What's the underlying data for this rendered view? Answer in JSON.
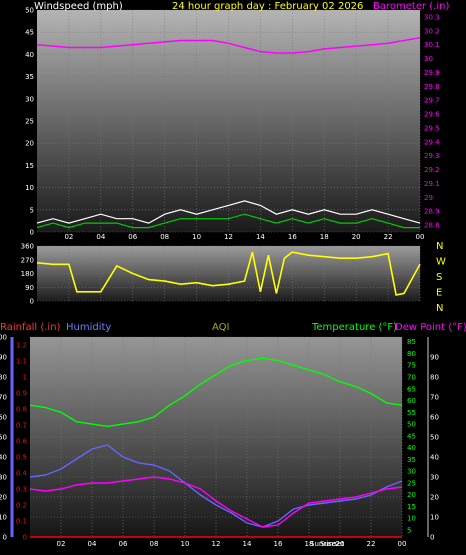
{
  "colors": {
    "wind": "#ffffff",
    "wind_avg": "#00cc00",
    "barometer": "#ff00ff",
    "direction": "#ffff00",
    "rainfall": "#ff0000",
    "humidity": "#6666ff",
    "temperature": "#00ff00",
    "dewpoint": "#ff00ff",
    "title": "#ffff00",
    "axis_text": "#ffffff",
    "background": "#000000"
  },
  "chart_data": [
    {
      "type": "line",
      "title": "24 hour graph day : February 02 2026",
      "left_label": "Windspeed (mph)",
      "right_label": "Barometer (.in)",
      "x_ticks": [
        "02",
        "04",
        "06",
        "08",
        "10",
        "12",
        "14",
        "16",
        "18",
        "20",
        "22",
        "00"
      ],
      "y_left_ticks": [
        "0",
        "5",
        "10",
        "15",
        "20",
        "25",
        "30",
        "35",
        "40",
        "45",
        "50"
      ],
      "y_right_ticks": [
        "28.8",
        "28.9",
        "29",
        "29.1",
        "29.2",
        "29.3",
        "29.4",
        "29.5",
        "29.6",
        "29.7",
        "29.8",
        "29.9",
        "30",
        "30.1",
        "30.2",
        "30.3"
      ],
      "ylim_left": [
        0,
        50
      ],
      "ylim_right": [
        28.75,
        30.35
      ],
      "series": [
        {
          "key": "barometer",
          "x": [
            0,
            1,
            2,
            3,
            4,
            5,
            6,
            7,
            8,
            9,
            10,
            11,
            12,
            13,
            14,
            15,
            16,
            17,
            18,
            19,
            20,
            21,
            22,
            23,
            24
          ],
          "values": [
            30.1,
            30.09,
            30.08,
            30.08,
            30.08,
            30.09,
            30.1,
            30.11,
            30.12,
            30.13,
            30.13,
            30.13,
            30.11,
            30.08,
            30.05,
            30.04,
            30.04,
            30.05,
            30.07,
            30.08,
            30.09,
            30.1,
            30.11,
            30.13,
            30.15
          ]
        },
        {
          "key": "wind",
          "x": [
            0,
            1,
            2,
            3,
            4,
            5,
            6,
            7,
            8,
            9,
            10,
            11,
            12,
            13,
            14,
            15,
            16,
            17,
            18,
            19,
            20,
            21,
            22,
            23,
            24
          ],
          "values": [
            2,
            3,
            2,
            3,
            4,
            3,
            3,
            2,
            4,
            5,
            4,
            5,
            6,
            7,
            6,
            4,
            5,
            4,
            5,
            4,
            4,
            5,
            4,
            3,
            2
          ]
        },
        {
          "key": "wind_avg",
          "x": [
            0,
            1,
            2,
            3,
            4,
            5,
            6,
            7,
            8,
            9,
            10,
            11,
            12,
            13,
            14,
            15,
            16,
            17,
            18,
            19,
            20,
            21,
            22,
            23,
            24
          ],
          "values": [
            1,
            2,
            1,
            2,
            2,
            2,
            1,
            1,
            2,
            3,
            3,
            3,
            3,
            4,
            3,
            2,
            3,
            2,
            3,
            2,
            2,
            3,
            2,
            1,
            1
          ]
        }
      ]
    },
    {
      "type": "line",
      "left_ticks": [
        "0",
        "90",
        "180",
        "270",
        "360"
      ],
      "right_ticks": [
        "N",
        "W",
        "S",
        "E",
        "N"
      ],
      "ylim": [
        0,
        360
      ],
      "series": [
        {
          "key": "direction",
          "x": [
            0,
            1,
            2,
            2.5,
            3,
            4,
            5,
            6,
            7,
            8,
            9,
            10,
            11,
            12,
            13,
            13.5,
            14,
            14.5,
            15,
            15.5,
            16,
            17,
            18,
            19,
            20,
            21,
            22,
            22.5,
            23,
            24
          ],
          "values": [
            250,
            240,
            240,
            60,
            60,
            60,
            230,
            180,
            140,
            130,
            110,
            120,
            100,
            110,
            130,
            320,
            60,
            300,
            50,
            280,
            320,
            300,
            290,
            280,
            280,
            290,
            310,
            40,
            50,
            240
          ]
        }
      ]
    },
    {
      "type": "line",
      "labels": {
        "rainfall": "Rainfall (.in)",
        "humidity": "Humidity",
        "aqi": "AQI",
        "temperature": "Temperature (°F)",
        "dewpoint": "Dew Point (°F)"
      },
      "x_ticks": [
        "02",
        "04",
        "06",
        "08",
        "10",
        "12",
        "14",
        "16",
        "18",
        "20",
        "22",
        "00"
      ],
      "sunrise_label": "Sunrise",
      "sunset_label": "Sunset",
      "y_humidity_ticks": [
        "0",
        "10",
        "20",
        "30",
        "40",
        "50",
        "60",
        "70",
        "80",
        "90",
        "100"
      ],
      "y_rain_ticks": [
        "0",
        "0.1",
        "0.2",
        "0.3",
        "0.4",
        "0.5",
        "0.6",
        "0.7",
        "0.8",
        "0.9",
        "1",
        "1.1",
        "1.2"
      ],
      "y_temp_ticks": [
        "5",
        "10",
        "15",
        "20",
        "25",
        "30",
        "35",
        "40",
        "45",
        "50",
        "55",
        "60",
        "65",
        "70",
        "75",
        "80",
        "85"
      ],
      "y_dew_ticks": [
        "0",
        "10",
        "20",
        "30",
        "40",
        "50",
        "60",
        "70",
        "80",
        "90"
      ],
      "rain_ylim": [
        0,
        1.25
      ],
      "temp_ylim": [
        2,
        87
      ],
      "series": [
        {
          "key": "temperature",
          "x": [
            0,
            1,
            2,
            3,
            4,
            5,
            6,
            7,
            8,
            9,
            10,
            11,
            12,
            13,
            14,
            15,
            16,
            17,
            18,
            19,
            20,
            21,
            22,
            23,
            24
          ],
          "values": [
            58,
            57,
            55,
            51,
            50,
            49,
            50,
            51,
            53,
            58,
            62,
            67,
            71,
            75,
            77,
            78,
            77,
            75,
            73,
            71,
            68,
            66,
            63,
            59,
            58
          ]
        },
        {
          "key": "humidity",
          "x": [
            0,
            1,
            2,
            3,
            4,
            5,
            6,
            7,
            8,
            9,
            10,
            11,
            12,
            13,
            14,
            15,
            16,
            17,
            18,
            19,
            20,
            21,
            22,
            23,
            24
          ],
          "values": [
            30,
            31,
            34,
            39,
            44,
            46,
            40,
            37,
            36,
            33,
            27,
            21,
            16,
            12,
            7,
            5,
            8,
            14,
            16,
            17,
            18,
            19,
            21,
            25,
            28
          ]
        },
        {
          "key": "dewpoint",
          "x": [
            0,
            1,
            2,
            3,
            4,
            5,
            6,
            7,
            8,
            9,
            10,
            11,
            12,
            13,
            14,
            15,
            16,
            17,
            18,
            19,
            20,
            21,
            22,
            23,
            24
          ],
          "values": [
            24,
            23,
            24,
            26,
            27,
            27,
            28,
            29,
            30,
            29,
            27,
            24,
            18,
            13,
            9,
            5,
            6,
            12,
            17,
            18,
            19,
            20,
            22,
            24,
            25
          ]
        },
        {
          "key": "rainfall",
          "x": [
            0,
            24
          ],
          "values": [
            0,
            0
          ]
        }
      ]
    }
  ]
}
